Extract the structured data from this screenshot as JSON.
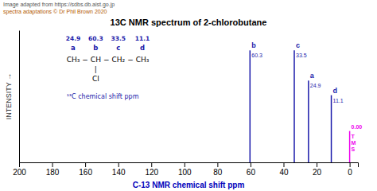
{
  "chart_data": {
    "type": "stem",
    "title": "13C NMR spectrum of 2-chlorobutane",
    "notes": [
      "Image adapted from https://sdbs.db.aist.go.jp",
      "spectra adaptations © Dr Phil Brown 2020"
    ],
    "xlabel": "C-13 NMR chemical shift ppm",
    "ylabel": "INTENSITY →",
    "x": [
      60.3,
      33.5,
      24.9,
      11.1,
      0.0
    ],
    "values": [
      1.0,
      1.0,
      0.73,
      0.6,
      0.28
    ],
    "colors": [
      "#1a1aaa",
      "#1a1aaa",
      "#1a1aaa",
      "#1a1aaa",
      "#ee00ee"
    ],
    "peak_labels": [
      "b",
      "c",
      "a",
      "d",
      "TMS"
    ],
    "x_labels": [
      "60.3",
      "33.5",
      "24.9",
      "11.1",
      "0.00"
    ],
    "xlim": [
      200,
      -5
    ],
    "xticks": [
      0,
      20,
      40,
      60,
      80,
      100,
      120,
      140,
      160,
      180,
      200
    ],
    "ylim": [
      0,
      1.18
    ],
    "tick_labels": "x",
    "grid": false,
    "structure": {
      "shifts": [
        "24.9",
        "60.3",
        "33.5",
        "11.1"
      ],
      "letters": [
        "a",
        "b",
        "c",
        "d"
      ],
      "formula": [
        "CH₃",
        "−",
        "CH",
        "−",
        "CH₂",
        "−",
        "CH₃"
      ],
      "branch": [
        "|",
        "Cl"
      ],
      "caption": "¹³C  chemical shift ppm"
    }
  }
}
